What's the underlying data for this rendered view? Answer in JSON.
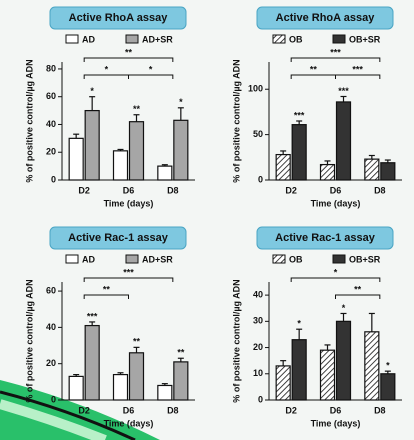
{
  "chart_data": [
    {
      "type": "bar",
      "title": "Active RhoA assay",
      "ylabel": "% of positive control/µg ADN",
      "xlabel": "Time (days)",
      "categories": [
        "D2",
        "D6",
        "D8"
      ],
      "series": [
        {
          "name": "AD",
          "color": "#ffffff",
          "values": [
            30,
            21,
            10
          ],
          "errors": [
            3,
            1,
            1
          ],
          "stars": [
            null,
            null,
            null
          ]
        },
        {
          "name": "AD+SR",
          "color": "#a6a6a6",
          "values": [
            50,
            42,
            43
          ],
          "errors": [
            10,
            5,
            9
          ],
          "stars": [
            "*",
            "**",
            "*"
          ]
        }
      ],
      "brackets": [
        {
          "from": "D2",
          "to": "D8",
          "label": "**"
        },
        {
          "from": "D2",
          "to": "D6",
          "label": "*"
        },
        {
          "from": "D6",
          "to": "D8",
          "label": "*"
        }
      ],
      "ylim": [
        0,
        85
      ],
      "yticks": [
        0,
        20,
        40,
        60,
        80
      ]
    },
    {
      "type": "bar",
      "title": "Active RhoA assay",
      "ylabel": "% of positive control/µg ADN",
      "xlabel": "Time (days)",
      "categories": [
        "D2",
        "D6",
        "D8"
      ],
      "series": [
        {
          "name": "OB",
          "color": "#ffffff",
          "pattern": "hatch",
          "values": [
            28,
            17,
            23
          ],
          "errors": [
            4,
            4,
            4
          ],
          "stars": [
            null,
            null,
            null
          ]
        },
        {
          "name": "OB+SR",
          "color": "#333333",
          "values": [
            61,
            86,
            19
          ],
          "errors": [
            4,
            6,
            3
          ],
          "stars": [
            "***",
            "***",
            null
          ]
        }
      ],
      "brackets": [
        {
          "from": "D2",
          "to": "D8",
          "label": "***"
        },
        {
          "from": "D2",
          "to": "D6",
          "label": "**"
        },
        {
          "from": "D6",
          "to": "D8",
          "label": "***"
        }
      ],
      "ylim": [
        0,
        130
      ],
      "yticks": [
        0,
        50,
        100
      ]
    },
    {
      "type": "bar",
      "title": "Active Rac-1 assay",
      "ylabel": "% of positive control/µg ADN",
      "xlabel": "Time (days)",
      "categories": [
        "D2",
        "D6",
        "D8"
      ],
      "series": [
        {
          "name": "AD",
          "color": "#ffffff",
          "values": [
            13,
            14,
            8
          ],
          "errors": [
            1,
            1,
            1
          ],
          "stars": [
            null,
            null,
            null
          ]
        },
        {
          "name": "AD+SR",
          "color": "#a6a6a6",
          "values": [
            41,
            26,
            21
          ],
          "errors": [
            2,
            3,
            2
          ],
          "stars": [
            "***",
            "**",
            "**"
          ]
        }
      ],
      "brackets": [
        {
          "from": "D2",
          "to": "D8",
          "label": "***"
        },
        {
          "from": "D2",
          "to": "D6",
          "label": "**"
        }
      ],
      "ylim": [
        0,
        65
      ],
      "yticks": [
        0,
        20,
        40,
        60
      ]
    },
    {
      "type": "bar",
      "title": "Active Rac-1 assay",
      "ylabel": "% of positive control/µg ADN",
      "xlabel": "Time (days)",
      "categories": [
        "D2",
        "D6",
        "D8"
      ],
      "series": [
        {
          "name": "OB",
          "color": "#ffffff",
          "pattern": "hatch",
          "values": [
            13,
            19,
            26
          ],
          "errors": [
            2,
            2,
            7
          ],
          "stars": [
            null,
            null,
            null
          ]
        },
        {
          "name": "OB+SR",
          "color": "#333333",
          "values": [
            23,
            30,
            10
          ],
          "errors": [
            4,
            3,
            1
          ],
          "stars": [
            "*",
            "*",
            "*"
          ]
        }
      ],
      "brackets": [
        {
          "from": "D2",
          "to": "D8",
          "label": "*"
        },
        {
          "from": "D6",
          "to": "D8",
          "label": "**"
        }
      ],
      "ylim": [
        0,
        45
      ],
      "yticks": [
        0,
        10,
        20,
        30,
        40
      ]
    }
  ]
}
